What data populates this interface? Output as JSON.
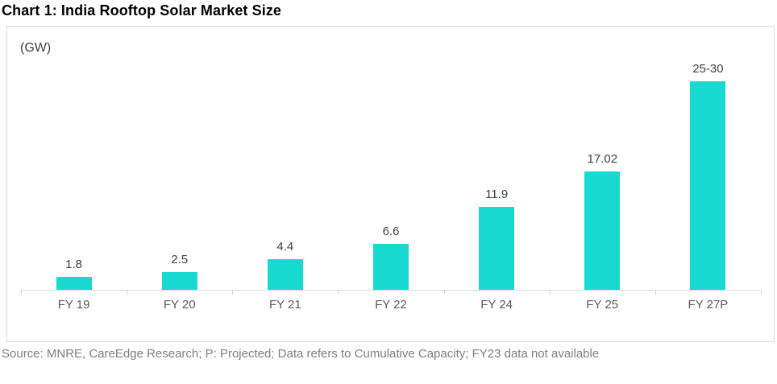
{
  "page": {
    "title": "Chart 1: India Rooftop Solar Market Size",
    "source_note": "Source: MNRE, CareEdge Research; P: Projected; Data refers to Cumulative Capacity; FY23 data not available"
  },
  "chart_data": {
    "type": "bar",
    "title": "Chart 1: India Rooftop Solar Market Size",
    "unit_label": "(GW)",
    "categories": [
      "FY 19",
      "FY 20",
      "FY 21",
      "FY 22",
      "FY 24",
      "FY 25",
      "FY 27P"
    ],
    "values": [
      1.8,
      2.5,
      4.4,
      6.6,
      11.9,
      17.02,
      30
    ],
    "value_labels": [
      "1.8",
      "2.5",
      "4.4",
      "6.6",
      "11.9",
      "17.02",
      "25-30"
    ],
    "xlabel": "",
    "ylabel": "(GW)",
    "ylim": [
      0,
      30
    ],
    "grid": false,
    "legend": false,
    "bar_color": "#18d9cf"
  },
  "colors": {
    "bar": "#18d9cf",
    "border": "#d9d9d9",
    "axis": "#d9d9d9",
    "tick": "#d2d2d2",
    "title_text": "#000000",
    "value_label_text": "#404040",
    "category_label_text": "#595959",
    "source_text": "#7f7f7f"
  }
}
